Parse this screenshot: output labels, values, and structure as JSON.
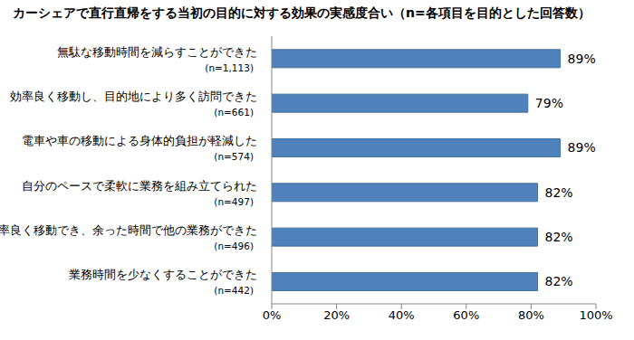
{
  "chart_data": {
    "type": "bar",
    "title": "カーシェアで直行直帰をする当初の目的に対する効果の実感度合い（n=各項目を目的とした回答数）",
    "categories": [
      "無駄な移動時間を減らすことができた",
      "効率良く移動し、目的地により多く訪問できた",
      "電車や車の移動による身体的負担が軽減した",
      "自分のペースで柔軟に業務を組み立てられた",
      "効率良く移動でき、余った時間で他の業務ができた",
      "業務時間を少なくすることができた"
    ],
    "category_notes": [
      "(n=1,113)",
      "(n=661)",
      "(n=574)",
      "(n=497)",
      "(n=496)",
      "(n=442)"
    ],
    "values": [
      89,
      79,
      89,
      82,
      82,
      82
    ],
    "value_labels": [
      "89%",
      "79%",
      "89%",
      "82%",
      "82%",
      "82%"
    ],
    "color": "#4f81bd",
    "orientation": "horizontal",
    "data_labels": true,
    "grid": false,
    "xlim": [
      0,
      100
    ],
    "xticks": [
      {
        "value": 0,
        "label": "0%"
      },
      {
        "value": 20,
        "label": "20%"
      },
      {
        "value": 40,
        "label": "40%"
      },
      {
        "value": 60,
        "label": "60%"
      },
      {
        "value": 80,
        "label": "80%"
      },
      {
        "value": 100,
        "label": "100%"
      }
    ]
  }
}
